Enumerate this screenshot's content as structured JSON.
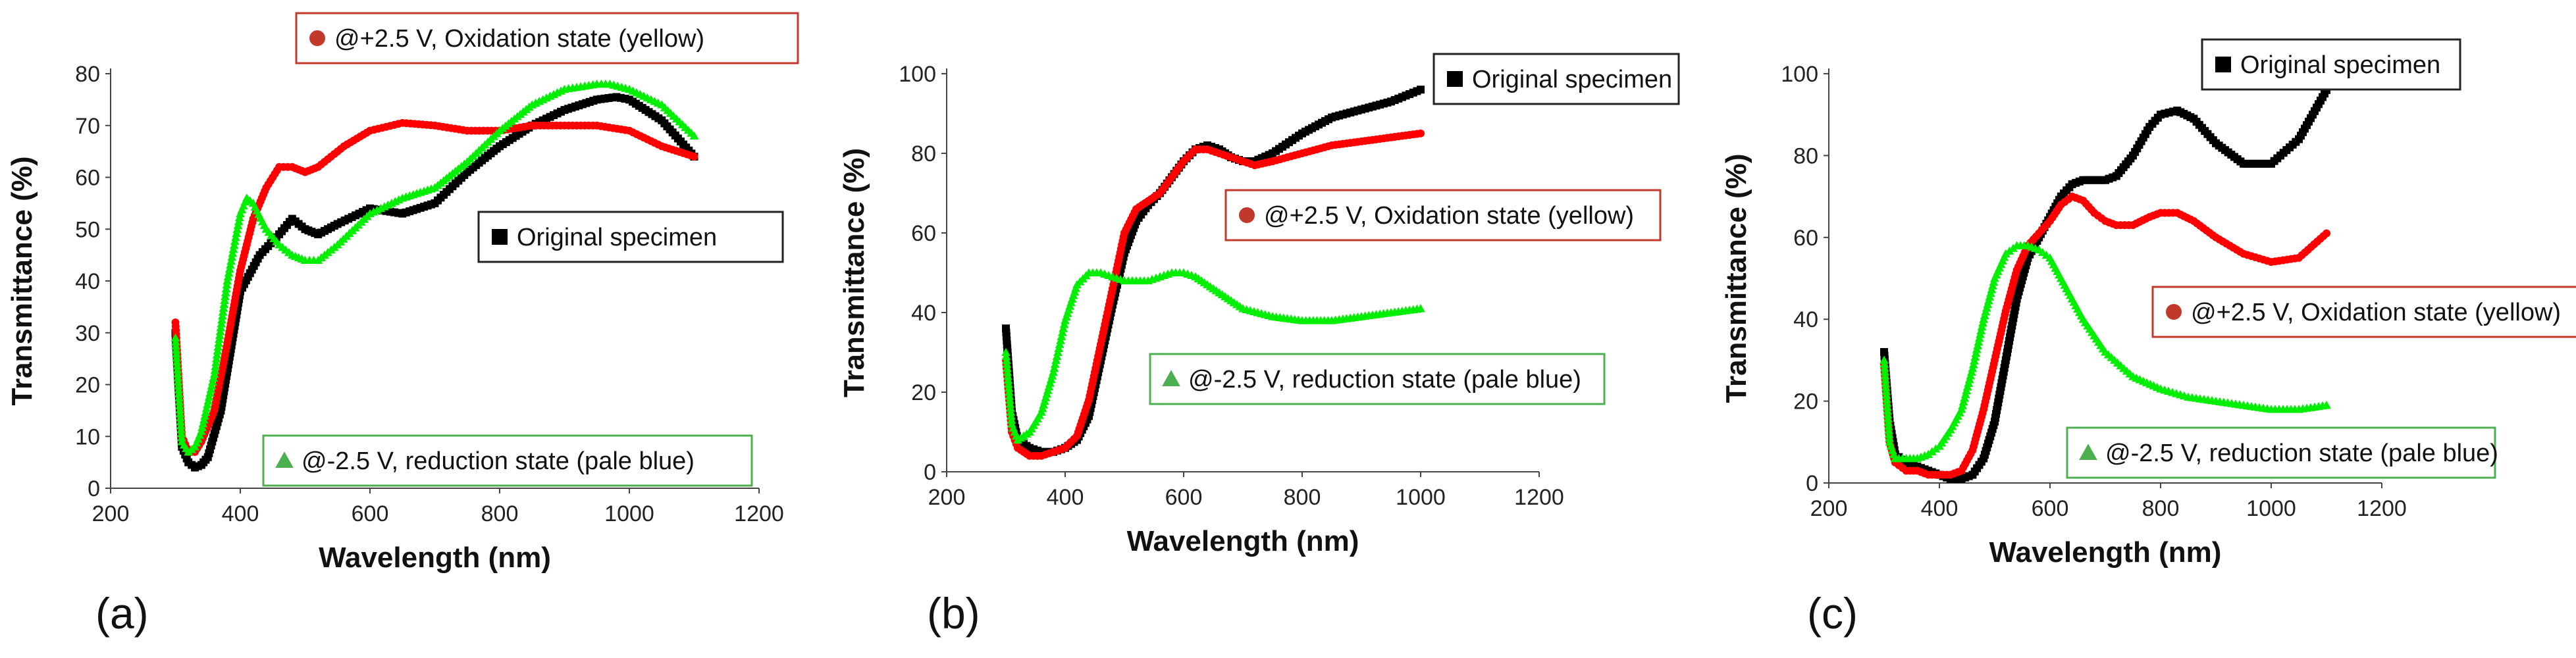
{
  "chart_data": [
    {
      "type": "scatter",
      "panel_label": "(a)",
      "xlabel": "Wavelength (nm)",
      "ylabel": "Transmittance (%)",
      "xlim": [
        200,
        1200
      ],
      "ylim": [
        0,
        80
      ],
      "xticks": [
        200,
        400,
        600,
        800,
        1000,
        1200
      ],
      "yticks": [
        0,
        10,
        20,
        30,
        40,
        50,
        60,
        70,
        80
      ],
      "series": [
        {
          "name": "Original specimen",
          "legend_label": "Original specimen",
          "marker": "square",
          "color": "#000000",
          "legend_position": "middle-right",
          "x": [
            300,
            310,
            320,
            330,
            340,
            350,
            370,
            400,
            430,
            460,
            480,
            500,
            520,
            550,
            600,
            650,
            700,
            750,
            800,
            850,
            900,
            950,
            980,
            1000,
            1050,
            1100
          ],
          "y": [
            30,
            8,
            5,
            4,
            4.5,
            6,
            15,
            38,
            45,
            49,
            52,
            50,
            49,
            51,
            54,
            53,
            55,
            61,
            66,
            70,
            73,
            75,
            75.5,
            75,
            71,
            64
          ]
        },
        {
          "name": "@+2.5 V, Oxidation state (yellow)",
          "legend_label": "@+2.5 V, Oxidation state (yellow)",
          "marker": "circle",
          "color": "#ff0000",
          "legend_position": "top",
          "x": [
            300,
            310,
            320,
            330,
            340,
            360,
            380,
            400,
            420,
            440,
            460,
            480,
            500,
            520,
            560,
            600,
            650,
            700,
            750,
            800,
            850,
            900,
            950,
            1000,
            1050,
            1100
          ],
          "y": [
            32,
            10,
            7,
            7,
            9,
            15,
            28,
            42,
            52,
            58,
            62,
            62,
            61,
            62,
            66,
            69,
            70.5,
            70,
            69,
            69,
            70,
            70,
            70,
            69,
            66,
            64
          ]
        },
        {
          "name": "@-2.5 V, reduction state (pale blue)",
          "legend_label": "@-2.5 V, reduction state (pale blue)",
          "marker": "triangle",
          "color": "#00ee00",
          "legend_position": "bottom",
          "x": [
            300,
            310,
            320,
            330,
            340,
            360,
            380,
            400,
            410,
            420,
            440,
            460,
            480,
            500,
            520,
            550,
            600,
            650,
            700,
            750,
            800,
            850,
            900,
            950,
            970,
            1000,
            1050,
            1100
          ],
          "y": [
            29,
            9,
            7,
            8,
            11,
            22,
            40,
            53,
            56,
            55,
            50,
            47,
            45,
            44,
            44,
            47,
            53,
            56,
            58,
            63,
            69,
            74,
            77,
            78,
            78,
            77,
            74,
            68
          ]
        }
      ]
    },
    {
      "type": "scatter",
      "panel_label": "(b)",
      "xlabel": "Wavelength (nm)",
      "ylabel": "Transmittance (%)",
      "xlim": [
        200,
        1200
      ],
      "ylim": [
        0,
        100
      ],
      "xticks": [
        200,
        400,
        600,
        800,
        1000,
        1200
      ],
      "yticks": [
        0,
        20,
        40,
        60,
        80,
        100
      ],
      "series": [
        {
          "name": "Original specimen",
          "legend_label": "Original specimen",
          "marker": "square",
          "color": "#000000",
          "legend_position": "top-right",
          "x": [
            300,
            310,
            320,
            340,
            360,
            380,
            400,
            420,
            440,
            460,
            480,
            500,
            520,
            540,
            560,
            580,
            600,
            620,
            640,
            660,
            680,
            700,
            720,
            750,
            800,
            850,
            900,
            950,
            1000
          ],
          "y": [
            36,
            15,
            8,
            6,
            5,
            5,
            6,
            8,
            14,
            28,
            42,
            55,
            63,
            67,
            70,
            74,
            78,
            81,
            82,
            81,
            79,
            78,
            78,
            80,
            85,
            89,
            91,
            93,
            96
          ]
        },
        {
          "name": "@+2.5 V, Oxidation state (yellow)",
          "legend_label": "@+2.5 V, Oxidation state (yellow)",
          "marker": "circle",
          "color": "#ff0000",
          "legend_position": "middle-right",
          "x": [
            300,
            310,
            320,
            340,
            360,
            380,
            400,
            420,
            440,
            460,
            480,
            500,
            520,
            540,
            560,
            580,
            600,
            620,
            640,
            660,
            680,
            700,
            720,
            750,
            800,
            850,
            900,
            950,
            1000
          ],
          "y": [
            28,
            10,
            6,
            4,
            4,
            5,
            6,
            9,
            18,
            32,
            46,
            60,
            66,
            68,
            70,
            74,
            78,
            81,
            81,
            80,
            79,
            78,
            77,
            78,
            80,
            82,
            83,
            84,
            85
          ]
        },
        {
          "name": "@-2.5 V, reduction state (pale blue)",
          "legend_label": "@-2.5 V, reduction state (pale blue)",
          "marker": "triangle",
          "color": "#00ee00",
          "legend_position": "bottom-right",
          "x": [
            300,
            310,
            320,
            340,
            360,
            380,
            400,
            420,
            440,
            460,
            480,
            500,
            520,
            540,
            560,
            580,
            600,
            620,
            640,
            660,
            680,
            700,
            750,
            800,
            850,
            900,
            950,
            1000
          ],
          "y": [
            30,
            12,
            8,
            10,
            15,
            25,
            38,
            47,
            50,
            50,
            49,
            48,
            48,
            48,
            49,
            50,
            50,
            49,
            47,
            45,
            43,
            41,
            39,
            38,
            38,
            39,
            40,
            41
          ]
        }
      ]
    },
    {
      "type": "scatter",
      "panel_label": "(c)",
      "xlabel": "Wavelength (nm)",
      "ylabel": "Transmittance (%)",
      "xlim": [
        200,
        1200
      ],
      "ylim": [
        0,
        100
      ],
      "xticks": [
        200,
        400,
        600,
        800,
        1000,
        1200
      ],
      "yticks": [
        0,
        20,
        40,
        60,
        80,
        100
      ],
      "series": [
        {
          "name": "Original specimen",
          "legend_label": "Original specimen",
          "marker": "square",
          "color": "#000000",
          "legend_position": "top-right",
          "x": [
            300,
            310,
            320,
            340,
            360,
            380,
            400,
            420,
            440,
            460,
            480,
            500,
            520,
            540,
            560,
            580,
            600,
            620,
            640,
            660,
            680,
            700,
            720,
            750,
            780,
            800,
            830,
            860,
            900,
            950,
            1000,
            1050,
            1100
          ],
          "y": [
            32,
            15,
            7,
            5,
            4,
            3,
            2,
            1,
            1,
            2,
            6,
            15,
            30,
            45,
            55,
            60,
            65,
            70,
            73,
            74,
            74,
            74,
            75,
            80,
            87,
            90,
            91,
            89,
            83,
            78,
            78,
            84,
            96
          ]
        },
        {
          "name": "@+2.5 V, Oxidation state (yellow)",
          "legend_label": "@+2.5 V, Oxidation state (yellow)",
          "marker": "circle",
          "color": "#ff0000",
          "legend_position": "middle-right",
          "x": [
            300,
            310,
            320,
            340,
            360,
            380,
            400,
            420,
            440,
            460,
            480,
            500,
            520,
            540,
            560,
            580,
            600,
            620,
            640,
            660,
            680,
            700,
            720,
            750,
            780,
            800,
            830,
            860,
            900,
            950,
            1000,
            1050,
            1100
          ],
          "y": [
            29,
            10,
            5,
            3,
            3,
            2,
            2,
            2,
            3,
            8,
            18,
            30,
            42,
            52,
            58,
            61,
            64,
            68,
            70,
            69,
            66,
            64,
            63,
            63,
            65,
            66,
            66,
            64,
            60,
            56,
            54,
            55,
            61
          ]
        },
        {
          "name": "@-2.5 V, reduction state (pale blue)",
          "legend_label": "@-2.5 V, reduction state (pale blue)",
          "marker": "triangle",
          "color": "#00ee00",
          "legend_position": "bottom-right",
          "x": [
            300,
            310,
            320,
            340,
            360,
            380,
            400,
            420,
            440,
            460,
            480,
            500,
            520,
            540,
            560,
            580,
            600,
            620,
            640,
            660,
            680,
            700,
            750,
            800,
            850,
            900,
            950,
            1000,
            1050,
            1100
          ],
          "y": [
            30,
            10,
            6,
            6,
            6,
            7,
            9,
            13,
            18,
            28,
            40,
            50,
            56,
            58,
            58,
            57,
            55,
            50,
            45,
            40,
            36,
            32,
            26,
            23,
            21,
            20,
            19,
            18,
            18,
            19
          ]
        }
      ]
    }
  ]
}
